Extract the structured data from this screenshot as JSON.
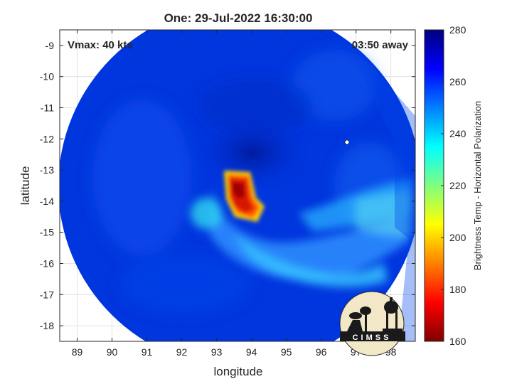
{
  "chart_data": {
    "type": "heatmap",
    "title": "One: 29-Jul-2022 16:30:00",
    "xlabel": "longitude",
    "ylabel": "latitude",
    "xlim": [
      88.5,
      98.7
    ],
    "ylim": [
      -18.5,
      -8.5
    ],
    "x_ticks": [
      89,
      90,
      91,
      92,
      93,
      94,
      95,
      96,
      97,
      98
    ],
    "y_ticks": [
      -9,
      -10,
      -11,
      -12,
      -13,
      -14,
      -15,
      -16,
      -17,
      -18
    ],
    "grid": true,
    "annotations": {
      "vmax": "Vmax: 40 kts",
      "away": "03:50 away"
    },
    "colorbar": {
      "label": "Brightness Temp - Horizontal Polarization",
      "range": [
        160,
        280
      ],
      "ticks": [
        160,
        180,
        200,
        220,
        240,
        260,
        280
      ],
      "colormap": "jet"
    },
    "swath": {
      "center_lon": 93.6,
      "center_lat": -13.2,
      "radius_deg": 5.0
    },
    "features": [
      {
        "name": "warm core",
        "lon": 93.7,
        "lat": -13.9,
        "value": 185
      },
      {
        "name": "rain band",
        "lon": 95.2,
        "lat": -15.6,
        "value": 238
      },
      {
        "name": "outer band",
        "lon": 97.6,
        "lat": -14.7,
        "value": 236
      }
    ],
    "logo_text": "CIMSS"
  },
  "colors": {
    "background": "#0038e0",
    "cold_center": "#001a9e",
    "band": "#2e9cff",
    "core": "#e81f0c",
    "axis": "#262626",
    "grid": "#dcdcdc"
  }
}
